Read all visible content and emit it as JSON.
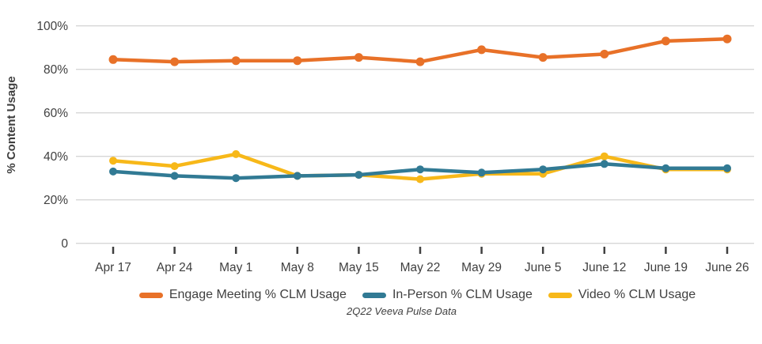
{
  "footnote": "2Q22 Veeva Pulse Data",
  "colors": {
    "background": "#ffffff",
    "gridline": "#d6d6d6",
    "axis_text": "#3f3f3f",
    "tick_mark": "#404040",
    "engage_orange": "#e87128",
    "inperson_teal": "#317a94",
    "video_yellow": "#f7b819"
  },
  "chart_data": {
    "type": "line",
    "title": "",
    "xlabel": "",
    "ylabel": "% Content Usage",
    "categories": [
      "Apr 17",
      "Apr 24",
      "May 1",
      "May 8",
      "May 15",
      "May 22",
      "May 29",
      "June 5",
      "June 12",
      "June 19",
      "June 26"
    ],
    "series": [
      {
        "name": "Engage Meeting % CLM Usage",
        "color": "#e87128",
        "values": [
          84.5,
          83.5,
          84,
          84,
          85.5,
          83.5,
          89,
          85.5,
          87,
          93,
          94
        ]
      },
      {
        "name": "In-Person % CLM Usage",
        "color": "#317a94",
        "values": [
          33,
          31,
          30,
          31,
          31.5,
          34,
          32.5,
          34,
          36.5,
          34.5,
          34.5
        ]
      },
      {
        "name": "Video % CLM Usage",
        "color": "#f7b819",
        "values": [
          38,
          35.5,
          41,
          31,
          31.5,
          29.5,
          32,
          32,
          40,
          34,
          34
        ]
      }
    ],
    "ylim": [
      0,
      100
    ],
    "yticks": [
      0,
      20,
      40,
      60,
      80,
      100
    ],
    "ytick_labels": [
      "0",
      "20%",
      "40%",
      "60%",
      "80%",
      "100%"
    ],
    "grid": "horizontal",
    "legend_position": "bottom"
  }
}
